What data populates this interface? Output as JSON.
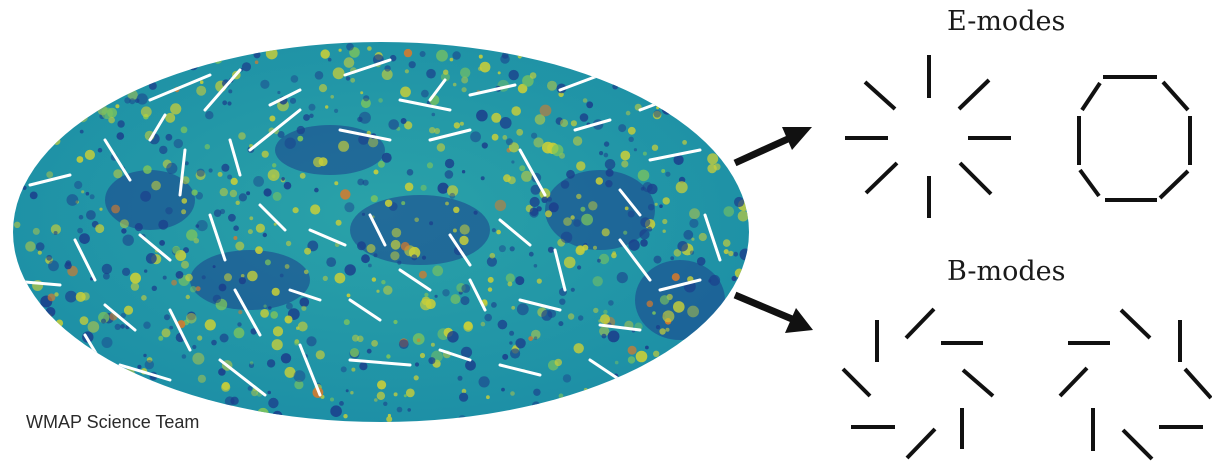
{
  "credit": "WMAP Science Team",
  "labels": {
    "e_modes": "E-modes",
    "b_modes": "B-modes"
  },
  "colors": {
    "sky_base": "#1f96a6",
    "cold": "#1b3f8c",
    "warm": "#c9cf38",
    "hot": "#e07a25",
    "polarization": "#ffffff",
    "pattern": "#111111"
  }
}
